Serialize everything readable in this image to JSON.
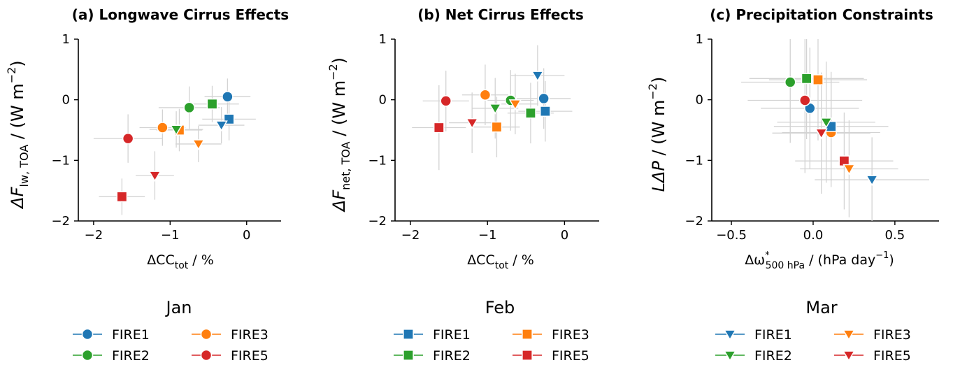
{
  "panels": [
    {
      "title": "(a) Longwave Cirrus Effects",
      "xlabel": "ΔCC",
      "xlabel_sub": "tot",
      "xlabel_tail": " / %",
      "ylabel_pre": "ΔF",
      "ylabel_sub": "lw, TOA",
      "ylabel_tail": " / (W m",
      "ylabel_sup": "−2",
      "ylabel_end": ")",
      "xticks": [
        {
          "v": -2,
          "label": "−2"
        },
        {
          "v": -1,
          "label": "−1"
        },
        {
          "v": 0,
          "label": "0"
        }
      ],
      "yticks": [
        {
          "v": 1,
          "label": "1"
        },
        {
          "v": 0,
          "label": "0"
        },
        {
          "v": -1,
          "label": "−1"
        },
        {
          "v": -2,
          "label": "−2"
        }
      ]
    },
    {
      "title": "(b) Net Cirrus Effects",
      "xlabel": "ΔCC",
      "xlabel_sub": "tot",
      "xlabel_tail": " / %",
      "ylabel_pre": "ΔF",
      "ylabel_sub": "net, TOA",
      "ylabel_tail": " / (W m",
      "ylabel_sup": "−2",
      "ylabel_end": ")",
      "xticks": [
        {
          "v": -2,
          "label": "−2"
        },
        {
          "v": -1,
          "label": "−1"
        },
        {
          "v": 0,
          "label": "0"
        }
      ],
      "yticks": [
        {
          "v": 1,
          "label": "1"
        },
        {
          "v": 0,
          "label": "0"
        },
        {
          "v": -1,
          "label": "−1"
        },
        {
          "v": -2,
          "label": "−2"
        }
      ]
    },
    {
      "title": "(c) Precipitation Constraints",
      "xlabel": "Δω",
      "xlabel_sup": "*",
      "xlabel_sub": "500 hPa",
      "xlabel_tail": " / (hPa day",
      "xlabel_sup2": "−1",
      "xlabel_end": ")",
      "ylabel_pre": "LΔP",
      "ylabel_sub": "",
      "ylabel_tail": " / (W m",
      "ylabel_sup": "−2",
      "ylabel_end": ")",
      "xticks": [
        {
          "v": -0.5,
          "label": "−0.5"
        },
        {
          "v": 0.0,
          "label": "0.0"
        },
        {
          "v": 0.5,
          "label": "0.5"
        }
      ],
      "yticks": [
        {
          "v": 1,
          "label": "1"
        },
        {
          "v": 0,
          "label": "0"
        },
        {
          "v": -1,
          "label": "−1"
        },
        {
          "v": -2,
          "label": "−2"
        }
      ]
    }
  ],
  "legends": [
    {
      "title": "Jan",
      "marker": "circle",
      "entries": [
        "FIRE1",
        "FIRE3",
        "FIRE2",
        "FIRE5"
      ]
    },
    {
      "title": "Feb",
      "marker": "square",
      "entries": [
        "FIRE1",
        "FIRE3",
        "FIRE2",
        "FIRE5"
      ]
    },
    {
      "title": "Mar",
      "marker": "triangle-down",
      "entries": [
        "FIRE1",
        "FIRE3",
        "FIRE2",
        "FIRE5"
      ]
    }
  ],
  "colors": {
    "FIRE1": "#1f77b4",
    "FIRE2": "#2ca02c",
    "FIRE3": "#ff7f0e",
    "FIRE5": "#d62728",
    "errorbar": "#d3d3d3"
  },
  "chart_data": [
    {
      "type": "scatter",
      "title": "(a) Longwave Cirrus Effects",
      "xlabel": "ΔCC_tot / %",
      "ylabel": "ΔF_lw, TOA / (W m^-2)",
      "xlim": [
        -2.2,
        0.45
      ],
      "ylim": [
        -2,
        1
      ],
      "grid": false,
      "series": [
        {
          "name": "FIRE1",
          "month": "Jan",
          "marker": "circle",
          "x": -0.25,
          "y": 0.05,
          "xerr": 0.3,
          "yerr": 0.3
        },
        {
          "name": "FIRE2",
          "month": "Jan",
          "marker": "circle",
          "x": -0.75,
          "y": -0.13,
          "xerr": 0.4,
          "yerr": 0.35
        },
        {
          "name": "FIRE3",
          "month": "Jan",
          "marker": "circle",
          "x": -1.1,
          "y": -0.46,
          "xerr": 0.3,
          "yerr": 0.3
        },
        {
          "name": "FIRE5",
          "month": "Jan",
          "marker": "circle",
          "x": -1.55,
          "y": -0.64,
          "xerr": 0.45,
          "yerr": 0.4
        },
        {
          "name": "FIRE1",
          "month": "Feb",
          "marker": "square",
          "x": -0.23,
          "y": -0.32,
          "xerr": 0.35,
          "yerr": 0.35
        },
        {
          "name": "FIRE2",
          "month": "Feb",
          "marker": "square",
          "x": -0.45,
          "y": -0.07,
          "xerr": 0.35,
          "yerr": 0.3
        },
        {
          "name": "FIRE3",
          "month": "Feb",
          "marker": "square",
          "x": -0.88,
          "y": -0.5,
          "xerr": 0.3,
          "yerr": 0.35
        },
        {
          "name": "FIRE5",
          "month": "Feb",
          "marker": "square",
          "x": -1.63,
          "y": -1.6,
          "xerr": 0.3,
          "yerr": 0.3
        },
        {
          "name": "FIRE1",
          "month": "Mar",
          "marker": "triangle-down",
          "x": -0.33,
          "y": -0.42,
          "xerr": 0.3,
          "yerr": 0.3
        },
        {
          "name": "FIRE2",
          "month": "Mar",
          "marker": "triangle-down",
          "x": -0.92,
          "y": -0.49,
          "xerr": 0.35,
          "yerr": 0.3
        },
        {
          "name": "FIRE3",
          "month": "Mar",
          "marker": "triangle-down",
          "x": -0.63,
          "y": -0.73,
          "xerr": 0.3,
          "yerr": 0.3
        },
        {
          "name": "FIRE5",
          "month": "Mar",
          "marker": "triangle-down",
          "x": -1.2,
          "y": -1.25,
          "xerr": 0.25,
          "yerr": 0.4
        }
      ]
    },
    {
      "type": "scatter",
      "title": "(b) Net Cirrus Effects",
      "xlabel": "ΔCC_tot / %",
      "ylabel": "ΔF_net, TOA / (W m^-2)",
      "xlim": [
        -2.2,
        0.45
      ],
      "ylim": [
        -2,
        1
      ],
      "grid": false,
      "series": [
        {
          "name": "FIRE1",
          "month": "Jan",
          "marker": "circle",
          "x": -0.27,
          "y": 0.02,
          "xerr": 0.35,
          "yerr": 0.5
        },
        {
          "name": "FIRE2",
          "month": "Jan",
          "marker": "circle",
          "x": -0.7,
          "y": -0.01,
          "xerr": 0.3,
          "yerr": 0.5
        },
        {
          "name": "FIRE3",
          "month": "Jan",
          "marker": "circle",
          "x": -1.03,
          "y": 0.08,
          "xerr": 0.3,
          "yerr": 0.5
        },
        {
          "name": "FIRE5",
          "month": "Jan",
          "marker": "circle",
          "x": -1.54,
          "y": -0.02,
          "xerr": 0.3,
          "yerr": 0.5
        },
        {
          "name": "FIRE1",
          "month": "Feb",
          "marker": "square",
          "x": -0.25,
          "y": -0.19,
          "xerr": 0.35,
          "yerr": 0.5
        },
        {
          "name": "FIRE2",
          "month": "Feb",
          "marker": "square",
          "x": -0.44,
          "y": -0.22,
          "xerr": 0.3,
          "yerr": 0.5
        },
        {
          "name": "FIRE3",
          "month": "Feb",
          "marker": "square",
          "x": -0.88,
          "y": -0.45,
          "xerr": 0.3,
          "yerr": 0.5
        },
        {
          "name": "FIRE5",
          "month": "Feb",
          "marker": "square",
          "x": -1.63,
          "y": -0.46,
          "xerr": 0.35,
          "yerr": 0.7
        },
        {
          "name": "FIRE1",
          "month": "Mar",
          "marker": "triangle-down",
          "x": -0.35,
          "y": 0.4,
          "xerr": 0.35,
          "yerr": 0.5
        },
        {
          "name": "FIRE2",
          "month": "Mar",
          "marker": "triangle-down",
          "x": -0.9,
          "y": -0.14,
          "xerr": 0.3,
          "yerr": 0.5
        },
        {
          "name": "FIRE3",
          "month": "Mar",
          "marker": "triangle-down",
          "x": -0.64,
          "y": -0.07,
          "xerr": 0.3,
          "yerr": 0.5
        },
        {
          "name": "FIRE5",
          "month": "Mar",
          "marker": "triangle-down",
          "x": -1.2,
          "y": -0.38,
          "xerr": 0.3,
          "yerr": 0.5
        }
      ]
    },
    {
      "type": "scatter",
      "title": "(c) Precipitation Constraints",
      "xlabel": "Δω*_500 hPa / (hPa day^-1)",
      "ylabel": "LΔP / (W m^-2)",
      "xlim": [
        -0.62,
        0.77
      ],
      "ylim": [
        -2,
        1
      ],
      "grid": false,
      "series": [
        {
          "name": "FIRE1",
          "month": "Jan",
          "marker": "circle",
          "x": -0.02,
          "y": -0.14,
          "xerr": 0.3,
          "yerr": 1.0
        },
        {
          "name": "FIRE2",
          "month": "Jan",
          "marker": "circle",
          "x": -0.14,
          "y": 0.29,
          "xerr": 0.3,
          "yerr": 1.0
        },
        {
          "name": "FIRE3",
          "month": "Jan",
          "marker": "circle",
          "x": 0.11,
          "y": -0.54,
          "xerr": 0.3,
          "yerr": 0.9
        },
        {
          "name": "FIRE5",
          "month": "Jan",
          "marker": "circle",
          "x": -0.05,
          "y": -0.01,
          "xerr": 0.35,
          "yerr": 1.2
        },
        {
          "name": "FIRE1",
          "month": "Feb",
          "marker": "square",
          "x": 0.11,
          "y": -0.44,
          "xerr": 0.35,
          "yerr": 0.9
        },
        {
          "name": "FIRE2",
          "month": "Feb",
          "marker": "square",
          "x": -0.04,
          "y": 0.35,
          "xerr": 0.35,
          "yerr": 1.0
        },
        {
          "name": "FIRE3",
          "month": "Feb",
          "marker": "square",
          "x": 0.03,
          "y": 0.33,
          "xerr": 0.3,
          "yerr": 1.0
        },
        {
          "name": "FIRE5",
          "month": "Feb",
          "marker": "square",
          "x": 0.19,
          "y": -1.01,
          "xerr": 0.3,
          "yerr": 0.8
        },
        {
          "name": "FIRE1",
          "month": "Mar",
          "marker": "triangle-down",
          "x": 0.36,
          "y": -1.32,
          "xerr": 0.35,
          "yerr": 0.7
        },
        {
          "name": "FIRE2",
          "month": "Mar",
          "marker": "triangle-down",
          "x": 0.08,
          "y": -0.37,
          "xerr": 0.3,
          "yerr": 1.0
        },
        {
          "name": "FIRE3",
          "month": "Mar",
          "marker": "triangle-down",
          "x": 0.22,
          "y": -1.14,
          "xerr": 0.3,
          "yerr": 0.8
        },
        {
          "name": "FIRE5",
          "month": "Mar",
          "marker": "triangle-down",
          "x": 0.05,
          "y": -0.55,
          "xerr": 0.3,
          "yerr": 1.0
        }
      ]
    }
  ]
}
